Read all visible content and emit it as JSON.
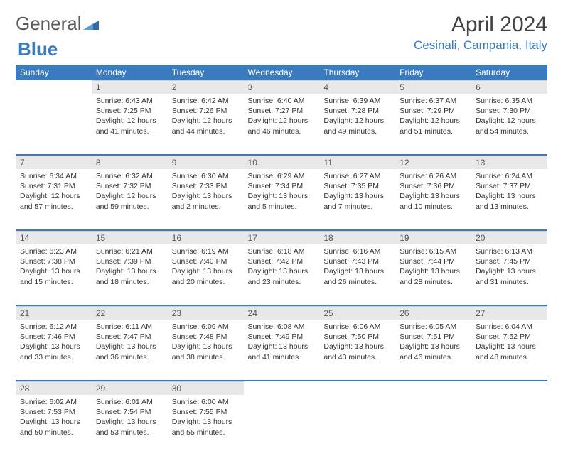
{
  "brand": {
    "part1": "General",
    "part2": "Blue"
  },
  "title": "April 2024",
  "location": "Cesinali, Campania, Italy",
  "colors": {
    "header_bg": "#3a7bbf",
    "header_text": "#ffffff",
    "daynum_bg": "#e8e8e8",
    "daynum_text": "#555555",
    "divider": "#3a7bbf",
    "body_text": "#333333",
    "location_text": "#3a7bbf",
    "title_text": "#444444"
  },
  "weekdays": [
    "Sunday",
    "Monday",
    "Tuesday",
    "Wednesday",
    "Thursday",
    "Friday",
    "Saturday"
  ],
  "weeks": [
    [
      null,
      {
        "n": "1",
        "sunrise": "6:43 AM",
        "sunset": "7:25 PM",
        "daylight": "12 hours and 41 minutes."
      },
      {
        "n": "2",
        "sunrise": "6:42 AM",
        "sunset": "7:26 PM",
        "daylight": "12 hours and 44 minutes."
      },
      {
        "n": "3",
        "sunrise": "6:40 AM",
        "sunset": "7:27 PM",
        "daylight": "12 hours and 46 minutes."
      },
      {
        "n": "4",
        "sunrise": "6:39 AM",
        "sunset": "7:28 PM",
        "daylight": "12 hours and 49 minutes."
      },
      {
        "n": "5",
        "sunrise": "6:37 AM",
        "sunset": "7:29 PM",
        "daylight": "12 hours and 51 minutes."
      },
      {
        "n": "6",
        "sunrise": "6:35 AM",
        "sunset": "7:30 PM",
        "daylight": "12 hours and 54 minutes."
      }
    ],
    [
      {
        "n": "7",
        "sunrise": "6:34 AM",
        "sunset": "7:31 PM",
        "daylight": "12 hours and 57 minutes."
      },
      {
        "n": "8",
        "sunrise": "6:32 AM",
        "sunset": "7:32 PM",
        "daylight": "12 hours and 59 minutes."
      },
      {
        "n": "9",
        "sunrise": "6:30 AM",
        "sunset": "7:33 PM",
        "daylight": "13 hours and 2 minutes."
      },
      {
        "n": "10",
        "sunrise": "6:29 AM",
        "sunset": "7:34 PM",
        "daylight": "13 hours and 5 minutes."
      },
      {
        "n": "11",
        "sunrise": "6:27 AM",
        "sunset": "7:35 PM",
        "daylight": "13 hours and 7 minutes."
      },
      {
        "n": "12",
        "sunrise": "6:26 AM",
        "sunset": "7:36 PM",
        "daylight": "13 hours and 10 minutes."
      },
      {
        "n": "13",
        "sunrise": "6:24 AM",
        "sunset": "7:37 PM",
        "daylight": "13 hours and 13 minutes."
      }
    ],
    [
      {
        "n": "14",
        "sunrise": "6:23 AM",
        "sunset": "7:38 PM",
        "daylight": "13 hours and 15 minutes."
      },
      {
        "n": "15",
        "sunrise": "6:21 AM",
        "sunset": "7:39 PM",
        "daylight": "13 hours and 18 minutes."
      },
      {
        "n": "16",
        "sunrise": "6:19 AM",
        "sunset": "7:40 PM",
        "daylight": "13 hours and 20 minutes."
      },
      {
        "n": "17",
        "sunrise": "6:18 AM",
        "sunset": "7:42 PM",
        "daylight": "13 hours and 23 minutes."
      },
      {
        "n": "18",
        "sunrise": "6:16 AM",
        "sunset": "7:43 PM",
        "daylight": "13 hours and 26 minutes."
      },
      {
        "n": "19",
        "sunrise": "6:15 AM",
        "sunset": "7:44 PM",
        "daylight": "13 hours and 28 minutes."
      },
      {
        "n": "20",
        "sunrise": "6:13 AM",
        "sunset": "7:45 PM",
        "daylight": "13 hours and 31 minutes."
      }
    ],
    [
      {
        "n": "21",
        "sunrise": "6:12 AM",
        "sunset": "7:46 PM",
        "daylight": "13 hours and 33 minutes."
      },
      {
        "n": "22",
        "sunrise": "6:11 AM",
        "sunset": "7:47 PM",
        "daylight": "13 hours and 36 minutes."
      },
      {
        "n": "23",
        "sunrise": "6:09 AM",
        "sunset": "7:48 PM",
        "daylight": "13 hours and 38 minutes."
      },
      {
        "n": "24",
        "sunrise": "6:08 AM",
        "sunset": "7:49 PM",
        "daylight": "13 hours and 41 minutes."
      },
      {
        "n": "25",
        "sunrise": "6:06 AM",
        "sunset": "7:50 PM",
        "daylight": "13 hours and 43 minutes."
      },
      {
        "n": "26",
        "sunrise": "6:05 AM",
        "sunset": "7:51 PM",
        "daylight": "13 hours and 46 minutes."
      },
      {
        "n": "27",
        "sunrise": "6:04 AM",
        "sunset": "7:52 PM",
        "daylight": "13 hours and 48 minutes."
      }
    ],
    [
      {
        "n": "28",
        "sunrise": "6:02 AM",
        "sunset": "7:53 PM",
        "daylight": "13 hours and 50 minutes."
      },
      {
        "n": "29",
        "sunrise": "6:01 AM",
        "sunset": "7:54 PM",
        "daylight": "13 hours and 53 minutes."
      },
      {
        "n": "30",
        "sunrise": "6:00 AM",
        "sunset": "7:55 PM",
        "daylight": "13 hours and 55 minutes."
      },
      null,
      null,
      null,
      null
    ]
  ]
}
